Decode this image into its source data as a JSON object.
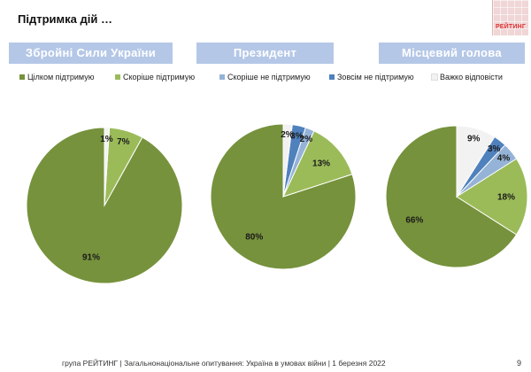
{
  "slide_title": "Підтримка дій …",
  "logo_text": "РЕЙТИНГ",
  "footer": "група РЕЙТИНГ | Загальнонаціональне опитування: Україна в умовах війни | 1 березня 2022",
  "page_number": "9",
  "colors": {
    "header_bg": "#b4c7e7",
    "full_support": "#76923c",
    "rather_support": "#9bbb59",
    "rather_not": "#95b3d7",
    "not_at_all": "#4f81bd",
    "hard_to_say": "#f2f2f2"
  },
  "chart_data": {
    "type": "pie",
    "legend": [
      "Цілком підтримую",
      "Скоріше підтримую",
      "Скоріше не підтримую",
      "Зовсім не підтримую",
      "Важко відповісти"
    ],
    "legend_position": "top",
    "charts": [
      {
        "title": "Збройні Сили України",
        "values": [
          91,
          7,
          0,
          0,
          1
        ],
        "labels": [
          "91%",
          "7%",
          "",
          "",
          "1%"
        ]
      },
      {
        "title": "Президент",
        "values": [
          80,
          13,
          2,
          3,
          2
        ],
        "labels": [
          "80%",
          "13%",
          "2%",
          "3%",
          "2%"
        ]
      },
      {
        "title": "Місцевий голова",
        "values": [
          66,
          18,
          4,
          3,
          9
        ],
        "labels": [
          "66%",
          "18%",
          "4%",
          "3%",
          "9%"
        ]
      }
    ]
  }
}
